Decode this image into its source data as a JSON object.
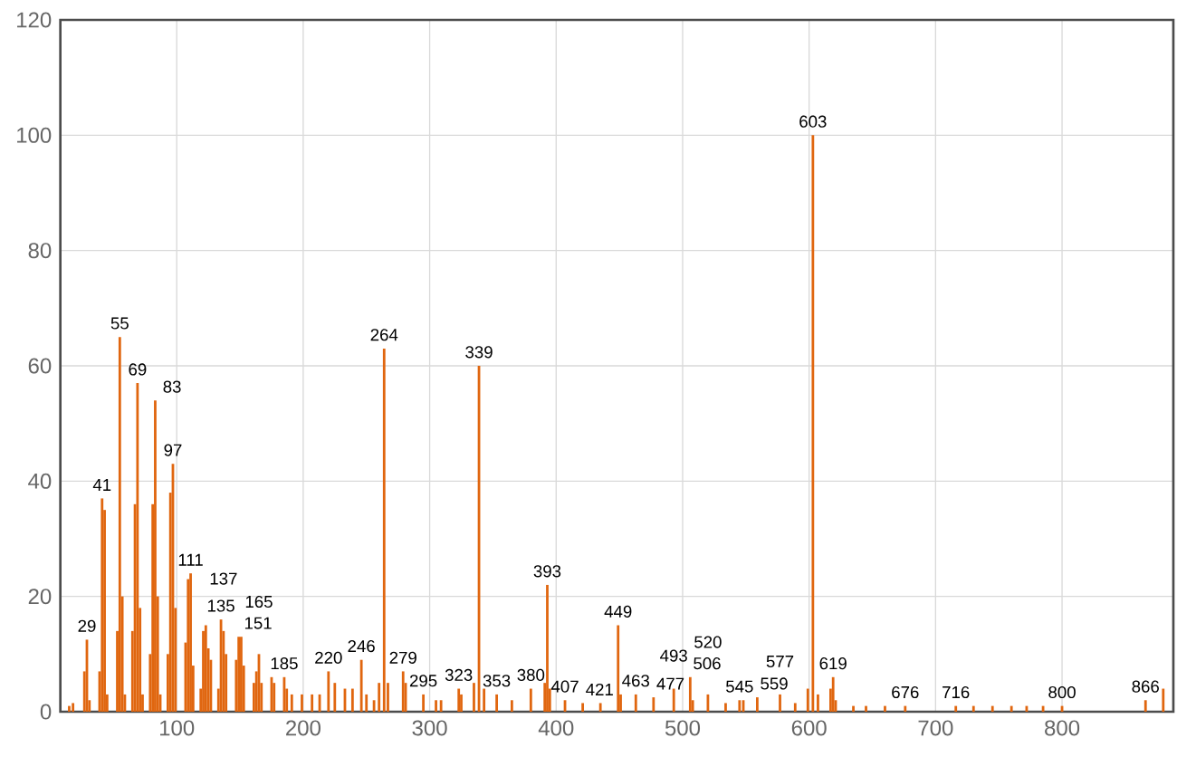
{
  "chart_data": {
    "type": "bar",
    "color": "#e0660f",
    "grid": true,
    "xlim": [
      8,
      888
    ],
    "ylim": [
      0,
      120
    ],
    "xticks": [
      100,
      200,
      300,
      400,
      500,
      600,
      700,
      800
    ],
    "yticks": [
      0,
      20,
      40,
      60,
      80,
      100,
      120
    ],
    "x": [
      15,
      18,
      27,
      29,
      31,
      39,
      41,
      43,
      45,
      53,
      55,
      57,
      59,
      65,
      67,
      69,
      71,
      73,
      79,
      81,
      83,
      85,
      87,
      93,
      95,
      97,
      99,
      107,
      109,
      111,
      113,
      119,
      121,
      123,
      125,
      127,
      133,
      135,
      137,
      139,
      147,
      149,
      151,
      153,
      161,
      163,
      165,
      167,
      175,
      177,
      185,
      187,
      191,
      199,
      207,
      213,
      220,
      225,
      233,
      239,
      246,
      250,
      256,
      260,
      264,
      267,
      279,
      281,
      295,
      305,
      309,
      323,
      325,
      335,
      339,
      343,
      353,
      365,
      380,
      391,
      393,
      395,
      407,
      421,
      435,
      449,
      451,
      463,
      477,
      493,
      506,
      508,
      520,
      534,
      545,
      548,
      559,
      577,
      589,
      599,
      603,
      607,
      617,
      619,
      621,
      635,
      645,
      660,
      676,
      716,
      730,
      745,
      760,
      772,
      785,
      800,
      866,
      880
    ],
    "values": [
      1,
      1.5,
      7,
      12.5,
      2,
      7,
      37,
      35,
      3,
      14,
      65,
      20,
      3,
      14,
      36,
      57,
      18,
      3,
      10,
      36,
      54,
      20,
      3,
      10,
      38,
      43,
      18,
      12,
      23,
      24,
      8,
      4,
      14,
      15,
      11,
      9,
      4,
      16,
      14,
      10,
      9,
      13,
      13,
      8,
      5,
      7,
      10,
      5,
      6,
      5,
      6,
      4,
      3,
      3,
      3,
      3,
      7,
      5,
      4,
      4,
      9,
      3,
      2,
      5,
      63,
      5,
      7,
      5,
      3,
      2,
      2,
      4,
      3,
      5,
      60,
      4,
      3,
      2,
      4,
      5,
      22,
      4,
      2,
      1.5,
      1.5,
      15,
      3,
      3,
      2.5,
      4,
      6,
      2,
      3,
      1.5,
      2,
      2,
      2.5,
      3,
      1.5,
      4,
      100,
      3,
      4,
      6,
      2,
      1,
      1,
      1,
      1,
      1,
      1,
      1,
      1,
      1,
      1,
      1,
      2,
      4
    ],
    "annotations": [
      {
        "text": "29",
        "x": 29,
        "y": 12.5
      },
      {
        "text": "41",
        "x": 41,
        "y": 37
      },
      {
        "text": "55",
        "x": 55,
        "y": 65
      },
      {
        "text": "69",
        "x": 69,
        "y": 57
      },
      {
        "text": "83",
        "x": 83,
        "y": 54
      },
      {
        "text": "97",
        "x": 97,
        "y": 43
      },
      {
        "text": "111",
        "x": 111,
        "y": 24
      },
      {
        "text": "135",
        "x": 135,
        "y": 16
      },
      {
        "text": "137",
        "x": 137,
        "y": 14
      },
      {
        "text": "151",
        "x": 151,
        "y": 13
      },
      {
        "text": "165",
        "x": 165,
        "y": 10
      },
      {
        "text": "185",
        "x": 185,
        "y": 6
      },
      {
        "text": "220",
        "x": 220,
        "y": 7
      },
      {
        "text": "246",
        "x": 246,
        "y": 9
      },
      {
        "text": "264",
        "x": 264,
        "y": 63
      },
      {
        "text": "279",
        "x": 279,
        "y": 7
      },
      {
        "text": "295",
        "x": 295,
        "y": 3
      },
      {
        "text": "323",
        "x": 323,
        "y": 4
      },
      {
        "text": "339",
        "x": 339,
        "y": 60
      },
      {
        "text": "353",
        "x": 353,
        "y": 3
      },
      {
        "text": "380",
        "x": 380,
        "y": 4
      },
      {
        "text": "393",
        "x": 393,
        "y": 22
      },
      {
        "text": "407",
        "x": 407,
        "y": 2
      },
      {
        "text": "421",
        "x": 421,
        "y": 1.5
      },
      {
        "text": "449",
        "x": 449,
        "y": 15
      },
      {
        "text": "463",
        "x": 463,
        "y": 3
      },
      {
        "text": "477",
        "x": 477,
        "y": 2.5
      },
      {
        "text": "493",
        "x": 493,
        "y": 4
      },
      {
        "text": "506",
        "x": 506,
        "y": 6
      },
      {
        "text": "520",
        "x": 520,
        "y": 3
      },
      {
        "text": "545",
        "x": 545,
        "y": 2
      },
      {
        "text": "559",
        "x": 559,
        "y": 2.5
      },
      {
        "text": "577",
        "x": 577,
        "y": 3
      },
      {
        "text": "603",
        "x": 603,
        "y": 100
      },
      {
        "text": "619",
        "x": 619,
        "y": 6
      },
      {
        "text": "676",
        "x": 676,
        "y": 1
      },
      {
        "text": "716",
        "x": 716,
        "y": 1
      },
      {
        "text": "800",
        "x": 800,
        "y": 1
      },
      {
        "text": "866",
        "x": 866,
        "y": 2
      }
    ]
  }
}
